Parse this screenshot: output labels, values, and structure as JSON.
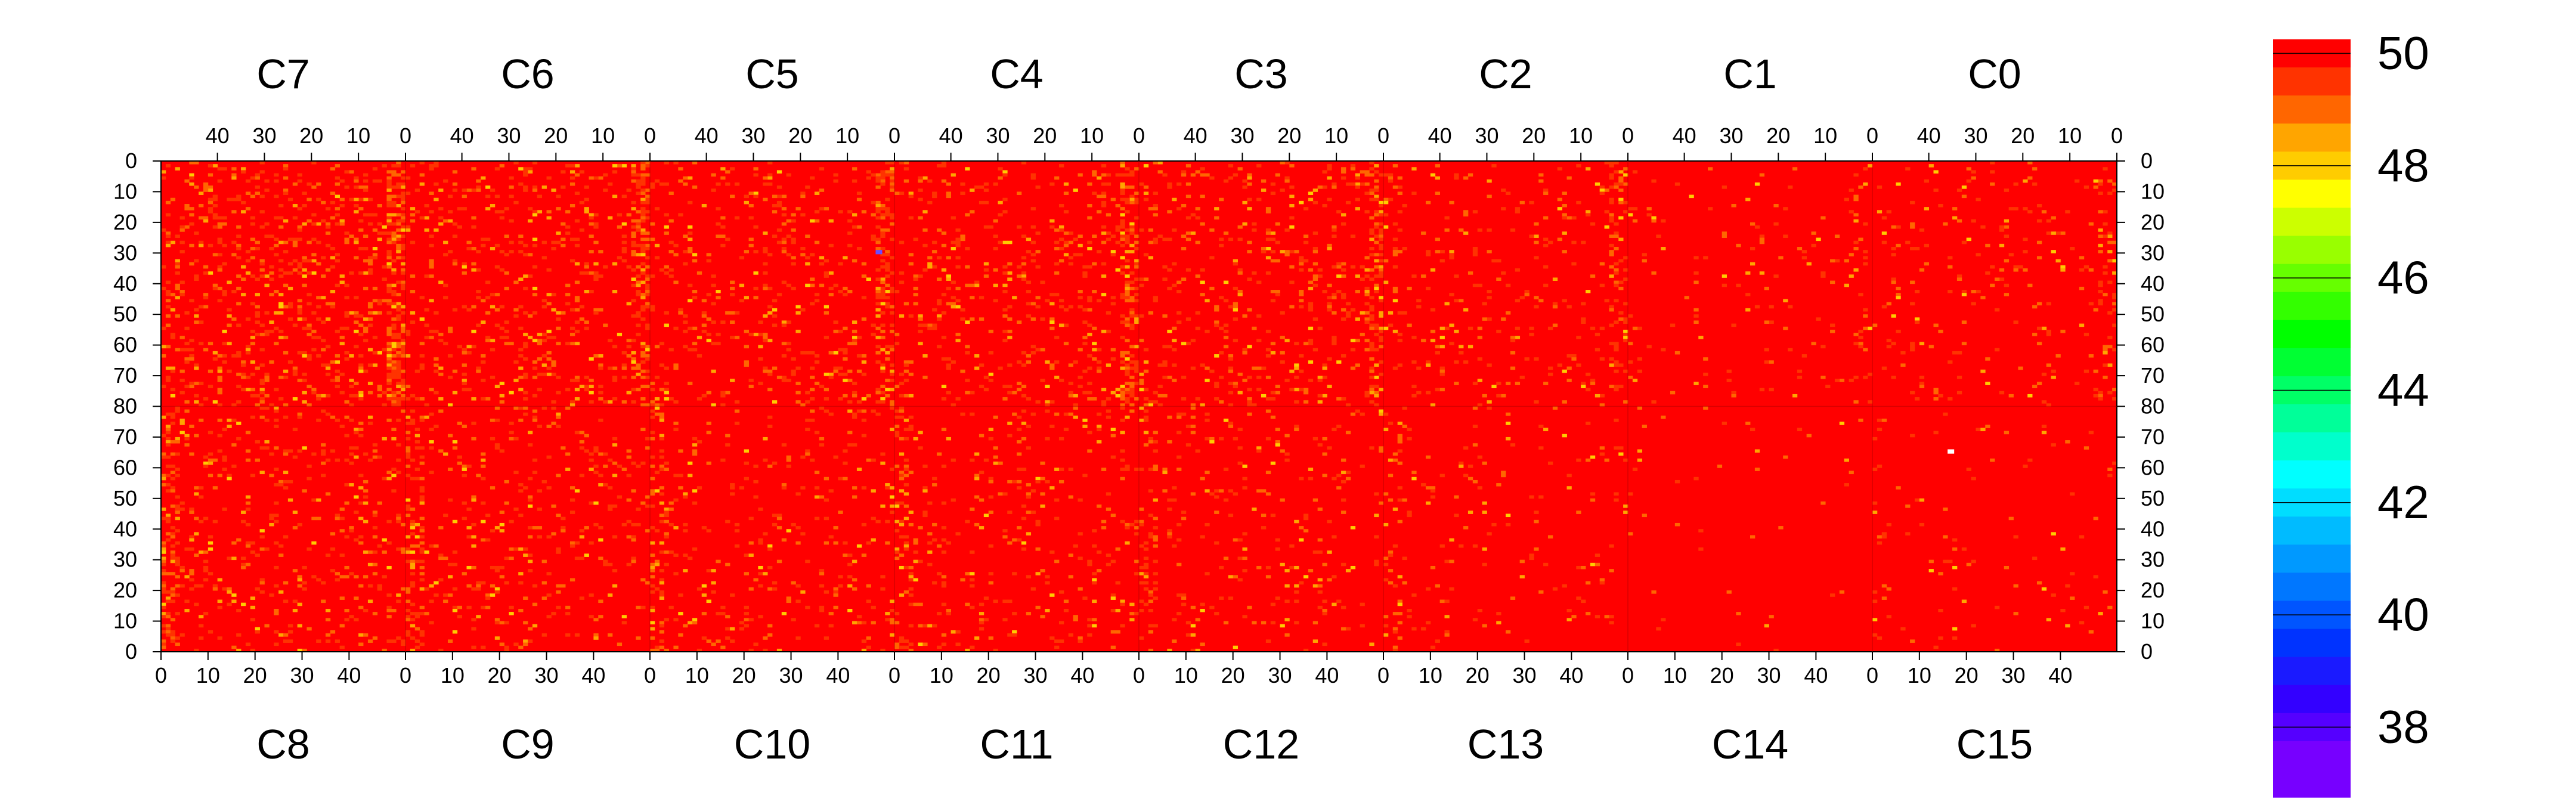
{
  "chart_data": {
    "type": "heatmap",
    "title": "",
    "xlabel": "",
    "ylabel": "",
    "zlim": [
      37.5,
      50
    ],
    "grid": false,
    "legend": "colorbar-right",
    "top_chips": [
      "C7",
      "C6",
      "C5",
      "C4",
      "C3",
      "C2",
      "C1",
      "C0"
    ],
    "bottom_chips": [
      "C8",
      "C9",
      "C10",
      "C11",
      "C12",
      "C13",
      "C14",
      "C15"
    ],
    "columns_per_chip": 52,
    "rows_per_half": 80,
    "top_x_ticks": [
      40,
      30,
      20,
      10,
      0
    ],
    "bottom_x_ticks": [
      0,
      10,
      20,
      30,
      40
    ],
    "top_half_y_ticks": [
      0,
      10,
      20,
      30,
      40,
      50,
      60,
      70,
      80
    ],
    "bottom_half_y_ticks": [
      70,
      60,
      50,
      40,
      30,
      20,
      10,
      0
    ],
    "colorbar_ticks": [
      50,
      48,
      46,
      44,
      42,
      40,
      38
    ],
    "colorbar_levels": [
      {
        "value": 50.0,
        "color": "#ff0000"
      },
      {
        "value": 49.5,
        "color": "#ff3300"
      },
      {
        "value": 49.0,
        "color": "#ff6600"
      },
      {
        "value": 48.5,
        "color": "#ffa500"
      },
      {
        "value": 48.0,
        "color": "#ffcc00"
      },
      {
        "value": 47.5,
        "color": "#ffff00"
      },
      {
        "value": 47.0,
        "color": "#ccff00"
      },
      {
        "value": 46.5,
        "color": "#99ff00"
      },
      {
        "value": 46.0,
        "color": "#66ff00"
      },
      {
        "value": 45.5,
        "color": "#33ff00"
      },
      {
        "value": 45.0,
        "color": "#00ff00"
      },
      {
        "value": 44.5,
        "color": "#00ff33"
      },
      {
        "value": 44.0,
        "color": "#00ff66"
      },
      {
        "value": 43.5,
        "color": "#00ff99"
      },
      {
        "value": 43.0,
        "color": "#00ffcc"
      },
      {
        "value": 42.5,
        "color": "#00ffff"
      },
      {
        "value": 42.0,
        "color": "#00ddff"
      },
      {
        "value": 41.5,
        "color": "#00bbff"
      },
      {
        "value": 41.0,
        "color": "#0099ff"
      },
      {
        "value": 40.5,
        "color": "#0077ff"
      },
      {
        "value": 40.0,
        "color": "#0055ff"
      },
      {
        "value": 39.5,
        "color": "#0033ff"
      },
      {
        "value": 39.0,
        "color": "#1a1aff"
      },
      {
        "value": 38.5,
        "color": "#3300ff"
      },
      {
        "value": 38.0,
        "color": "#5500ff"
      },
      {
        "value": 37.5,
        "color": "#7700ff"
      }
    ],
    "background_value": 50,
    "background_color": "#ff0000",
    "noise_colors": [
      "#ff3300",
      "#ff6600",
      "#ffa500",
      "#ffcc00"
    ],
    "noise_density_by_chip": {
      "C7": 0.16,
      "C6": 0.12,
      "C5": 0.1,
      "C4": 0.12,
      "C3": 0.11,
      "C2": 0.07,
      "C1": 0.025,
      "C0": 0.05,
      "C8": 0.1,
      "C9": 0.08,
      "C10": 0.07,
      "C11": 0.07,
      "C12": 0.06,
      "C13": 0.03,
      "C14": 0.01,
      "C15": 0.02
    },
    "outlier_pixels": [
      {
        "chip": "C15",
        "column": 16,
        "row": 65,
        "color": "#ffffff"
      },
      {
        "chip": "C5",
        "column": 3,
        "row": 30,
        "color": "#6a4cff"
      }
    ]
  }
}
